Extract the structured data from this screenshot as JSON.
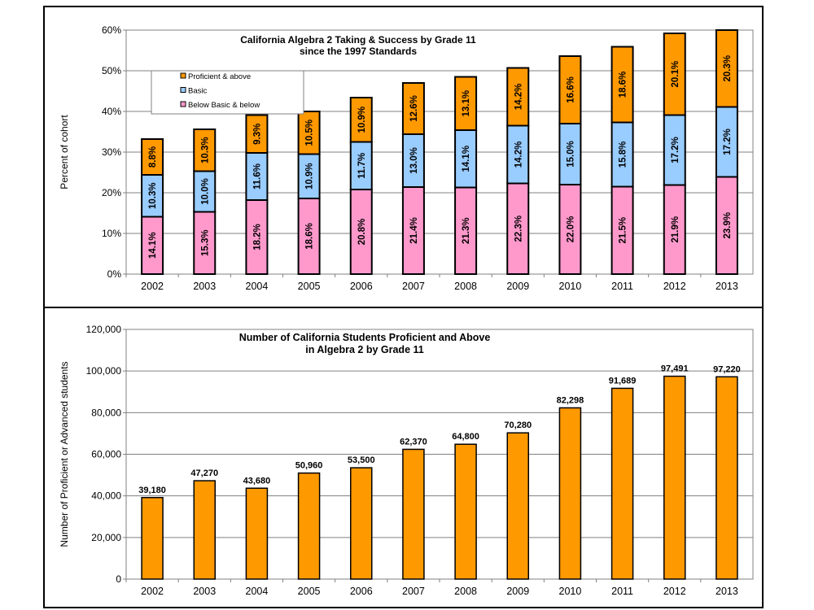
{
  "chart_data": [
    {
      "type": "bar",
      "stacked": true,
      "title": "California Algebra 2 Taking & Success by Grade 11",
      "subtitle": "since the 1997 Standards",
      "xlabel": "",
      "ylabel": "Percent of cohort",
      "ylim": [
        0,
        60
      ],
      "yticks": [
        "0%",
        "10%",
        "20%",
        "30%",
        "40%",
        "50%",
        "60%"
      ],
      "grid": true,
      "legend_position": "top-left",
      "categories": [
        "2002",
        "2003",
        "2004",
        "2005",
        "2006",
        "2007",
        "2008",
        "2009",
        "2010",
        "2011",
        "2012",
        "2013"
      ],
      "series": [
        {
          "name": "Below Basic & below",
          "color": "#ff99cc",
          "values": [
            14.1,
            15.3,
            18.2,
            18.6,
            20.8,
            21.4,
            21.3,
            22.3,
            22.0,
            21.5,
            21.9,
            23.9
          ],
          "labels": [
            "14.1%",
            "15.3%",
            "18.2%",
            "18.6%",
            "20.8%",
            "21.4%",
            "21.3%",
            "22.3%",
            "22.0%",
            "21.5%",
            "21.9%",
            "23.9%"
          ]
        },
        {
          "name": "Basic",
          "color": "#99ccff",
          "values": [
            10.3,
            10.0,
            11.6,
            10.9,
            11.7,
            13.0,
            14.1,
            14.2,
            15.0,
            15.8,
            17.2,
            17.2
          ],
          "labels": [
            "10.3%",
            "10.0%",
            "11.6%",
            "10.9%",
            "11.7%",
            "13.0%",
            "14.1%",
            "14.2%",
            "15.0%",
            "15.8%",
            "17.2%",
            "17.2%"
          ]
        },
        {
          "name": "Proficient & above",
          "color": "#ff9900",
          "values": [
            8.8,
            10.3,
            9.3,
            10.5,
            10.9,
            12.6,
            13.1,
            14.2,
            16.6,
            18.6,
            20.1,
            20.3
          ],
          "labels": [
            "8.8%",
            "10.3%",
            "9.3%",
            "10.5%",
            "10.9%",
            "12.6%",
            "13.1%",
            "14.2%",
            "16.6%",
            "18.6%",
            "20.1%",
            "20.3%"
          ]
        }
      ],
      "legend_order": [
        "Proficient & above",
        "Basic",
        "Below Basic & below"
      ]
    },
    {
      "type": "bar",
      "title": "Number of California Students Proficient and Above",
      "subtitle": "in Algebra 2 by Grade 11",
      "xlabel": "",
      "ylabel": "Number of Proficient or Advanced students",
      "ylim": [
        0,
        120000
      ],
      "yticks": [
        "0",
        "20,000",
        "40,000",
        "60,000",
        "80,000",
        "100,000",
        "120,000"
      ],
      "grid": true,
      "color": "#ff9900",
      "categories": [
        "2002",
        "2003",
        "2004",
        "2005",
        "2006",
        "2007",
        "2008",
        "2009",
        "2010",
        "2011",
        "2012",
        "2013"
      ],
      "values": [
        39180,
        47270,
        43680,
        50960,
        53500,
        62370,
        64800,
        70280,
        82298,
        91689,
        97491,
        97220
      ],
      "labels": [
        "39,180",
        "47,270",
        "43,680",
        "50,960",
        "53,500",
        "62,370",
        "64,800",
        "70,280",
        "82,298",
        "91,689",
        "97,491",
        "97,220"
      ]
    }
  ]
}
